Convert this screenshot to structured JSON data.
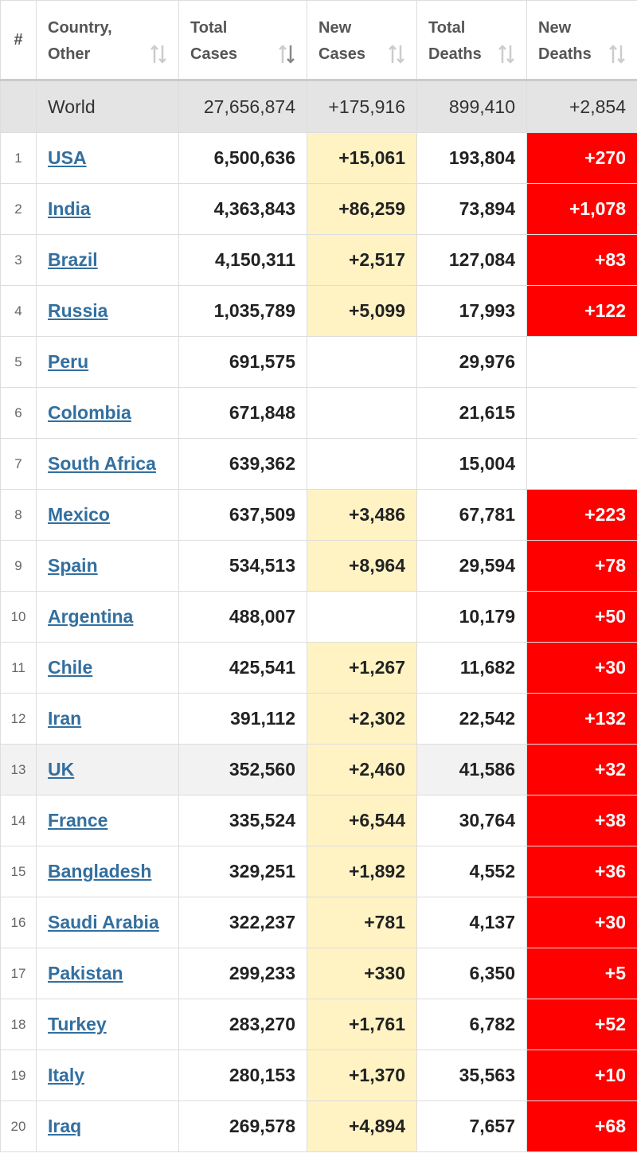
{
  "table": {
    "columns": [
      "#",
      "Country, Other",
      "Total Cases",
      "New Cases",
      "Total Deaths",
      "New Deaths"
    ],
    "world": [
      "World",
      "27,656,874",
      "+175,916",
      "899,410",
      "+2,854"
    ],
    "rows": [
      [
        1,
        "USA",
        "6,500,636",
        "+15,061",
        "193,804",
        "+270"
      ],
      [
        2,
        "India",
        "4,363,843",
        "+86,259",
        "73,894",
        "+1,078"
      ],
      [
        3,
        "Brazil",
        "4,150,311",
        "+2,517",
        "127,084",
        "+83"
      ],
      [
        4,
        "Russia",
        "1,035,789",
        "+5,099",
        "17,993",
        "+122"
      ],
      [
        5,
        "Peru",
        "691,575",
        null,
        "29,976",
        null
      ],
      [
        6,
        "Colombia",
        "671,848",
        null,
        "21,615",
        null
      ],
      [
        7,
        "South Africa",
        "639,362",
        null,
        "15,004",
        null
      ],
      [
        8,
        "Mexico",
        "637,509",
        "+3,486",
        "67,781",
        "+223"
      ],
      [
        9,
        "Spain",
        "534,513",
        "+8,964",
        "29,594",
        "+78"
      ],
      [
        10,
        "Argentina",
        "488,007",
        null,
        "10,179",
        "+50"
      ],
      [
        11,
        "Chile",
        "425,541",
        "+1,267",
        "11,682",
        "+30"
      ],
      [
        12,
        "Iran",
        "391,112",
        "+2,302",
        "22,542",
        "+132"
      ],
      [
        13,
        "UK",
        "352,560",
        "+2,460",
        "41,586",
        "+32"
      ],
      [
        14,
        "France",
        "335,524",
        "+6,544",
        "30,764",
        "+38"
      ],
      [
        15,
        "Bangladesh",
        "329,251",
        "+1,892",
        "4,552",
        "+36"
      ],
      [
        16,
        "Saudi Arabia",
        "322,237",
        "+781",
        "4,137",
        "+30"
      ],
      [
        17,
        "Pakistan",
        "299,233",
        "+330",
        "6,350",
        "+5"
      ],
      [
        18,
        "Turkey",
        "283,270",
        "+1,761",
        "6,782",
        "+52"
      ],
      [
        19,
        "Italy",
        "280,153",
        "+1,370",
        "35,563",
        "+10"
      ],
      [
        20,
        "Iraq",
        "269,578",
        "+4,894",
        "7,657",
        "+68"
      ]
    ]
  }
}
